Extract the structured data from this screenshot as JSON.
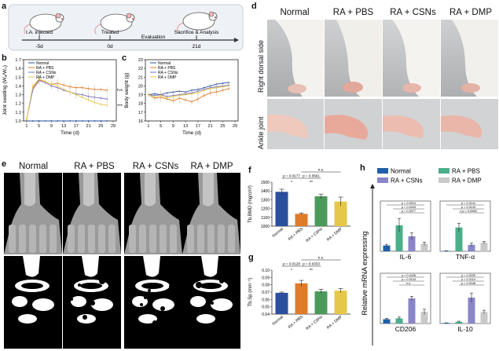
{
  "panel_labels": [
    "a",
    "b",
    "c",
    "d",
    "e",
    "f",
    "g",
    "h"
  ],
  "timeline": {
    "events": [
      {
        "label": "I.A. injected",
        "day": "-5d"
      },
      {
        "label": "Treated",
        "day": "0d"
      },
      {
        "label": "Sacrifice & Analysis",
        "day": "21d"
      }
    ],
    "arrow_label": "Evaluation"
  },
  "groups": [
    "Normal",
    "RA + PBS",
    "RA + CSNs",
    "RA + DMP"
  ],
  "colors": {
    "normal": "#2b4f9e",
    "pbs": "#e07b2a",
    "csns": "#7b6fbf",
    "dmp": "#e5c84a",
    "h_normal": "#1f5fa8",
    "h_pbs": "#4caf8a",
    "h_csns": "#8a86c8",
    "h_dmp": "#c9c9c9"
  },
  "panel_d": {
    "row_labels": [
      "Right dorsal side",
      "Ankle joint"
    ]
  },
  "chart_data": [
    {
      "id": "b",
      "type": "line",
      "xlabel": "Time (d)",
      "ylabel": "Joint swelling (Wₐ/W₀)",
      "xticks": [
        "1",
        "5",
        "9",
        "13",
        "17",
        "21",
        "25",
        "29"
      ],
      "yticks": [
        "1.0",
        "1.1",
        "1.2",
        "1.3",
        "1.4",
        "1.5",
        "1.6",
        "1.7"
      ],
      "xlim": [
        0,
        30
      ],
      "ylim": [
        1.0,
        1.7
      ],
      "annotations": [
        "n.s.",
        "***"
      ],
      "series": [
        {
          "name": "Normal",
          "x": [
            1,
            3,
            5,
            7,
            9,
            11,
            13,
            15,
            17,
            19,
            21,
            23,
            25,
            27
          ],
          "y": [
            1.0,
            1.0,
            1.0,
            1.0,
            1.0,
            1.0,
            1.0,
            1.0,
            1.0,
            1.0,
            1.0,
            1.0,
            1.0,
            1.0
          ]
        },
        {
          "name": "RA + PBS",
          "x": [
            1,
            3,
            5,
            7,
            9,
            11,
            13,
            15,
            17,
            19,
            21,
            23,
            25,
            27
          ],
          "y": [
            1.02,
            1.38,
            1.47,
            1.45,
            1.42,
            1.43,
            1.41,
            1.39,
            1.38,
            1.38,
            1.37,
            1.36,
            1.36,
            1.35
          ]
        },
        {
          "name": "RA + CSNs",
          "x": [
            1,
            3,
            5,
            7,
            9,
            11,
            13,
            15,
            17,
            19,
            21,
            23,
            25,
            27
          ],
          "y": [
            1.02,
            1.36,
            1.46,
            1.44,
            1.4,
            1.38,
            1.35,
            1.33,
            1.31,
            1.3,
            1.28,
            1.27,
            1.26,
            1.25
          ]
        },
        {
          "name": "RA + DMP",
          "x": [
            1,
            3,
            5,
            7,
            9,
            11,
            13,
            15,
            17,
            19,
            21,
            23,
            25,
            27
          ],
          "y": [
            1.02,
            1.4,
            1.48,
            1.45,
            1.42,
            1.4,
            1.36,
            1.33,
            1.3,
            1.27,
            1.24,
            1.21,
            1.19,
            1.18
          ]
        }
      ]
    },
    {
      "id": "c",
      "type": "line",
      "xlabel": "Time (d)",
      "ylabel": "Body weight (g)",
      "xticks": [
        "1",
        "5",
        "9",
        "13",
        "17",
        "21",
        "25",
        "29"
      ],
      "yticks": [
        "16",
        "17",
        "18",
        "19",
        "20",
        "21",
        "22",
        "23"
      ],
      "xlim": [
        0,
        30
      ],
      "ylim": [
        16,
        23
      ],
      "series": [
        {
          "name": "Normal",
          "x": [
            1,
            3,
            5,
            7,
            9,
            11,
            13,
            15,
            17,
            19,
            21,
            23,
            25,
            27
          ],
          "y": [
            19.0,
            19.1,
            19.0,
            19.2,
            19.3,
            19.4,
            19.3,
            19.5,
            19.6,
            19.8,
            20.0,
            20.2,
            20.3,
            20.4
          ]
        },
        {
          "name": "RA + PBS",
          "x": [
            1,
            3,
            5,
            7,
            9,
            11,
            13,
            15,
            17,
            19,
            21,
            23,
            25,
            27
          ],
          "y": [
            19.0,
            18.6,
            18.7,
            18.5,
            18.3,
            18.6,
            18.4,
            18.2,
            18.5,
            18.9,
            19.2,
            19.3,
            19.5,
            19.7
          ]
        },
        {
          "name": "RA + CSNs",
          "x": [
            1,
            3,
            5,
            7,
            9,
            11,
            13,
            15,
            17,
            19,
            21,
            23,
            25,
            27
          ],
          "y": [
            19.0,
            18.9,
            19.0,
            18.8,
            18.9,
            19.0,
            19.1,
            19.2,
            19.4,
            19.6,
            19.8,
            19.9,
            20.0,
            20.1
          ]
        },
        {
          "name": "RA + DMP",
          "x": [
            1,
            3,
            5,
            7,
            9,
            11,
            13,
            15,
            17,
            19,
            21,
            23,
            25,
            27
          ],
          "y": [
            19.0,
            18.7,
            18.9,
            18.6,
            18.8,
            18.9,
            19.0,
            19.1,
            19.2,
            19.5,
            19.7,
            19.8,
            19.9,
            20.0
          ]
        }
      ]
    },
    {
      "id": "f",
      "type": "bar",
      "ylabel": "Tb.BMD (mg/cm³)",
      "categories": [
        "Normal",
        "RA + PBS",
        "RA + CSNs",
        "RA + DMP"
      ],
      "values": [
        1390,
        1140,
        1340,
        1280
      ],
      "errors": [
        30,
        10,
        25,
        50
      ],
      "ylim": [
        1000,
        1500
      ],
      "yticks": [
        "1000",
        "1100",
        "1200",
        "1300",
        "1400",
        "1500"
      ],
      "sig": [
        {
          "text": "p = 0.0177",
          "from": 0,
          "to": 1
        },
        {
          "text": "p = 0.0561",
          "from": 1,
          "to": 2
        },
        {
          "text": "n.s.",
          "from": 1,
          "to": 3
        },
        {
          "text": "*",
          "from": 0,
          "to": 1
        },
        {
          "text": "**",
          "from": 1,
          "to": 2
        }
      ]
    },
    {
      "id": "g",
      "type": "bar",
      "ylabel": "Tb.Sp (mm⁻¹)",
      "categories": [
        "Normal",
        "RA + PBS",
        "RA + CSNs",
        "RA + DMP"
      ],
      "values": [
        0.069,
        0.082,
        0.071,
        0.072
      ],
      "errors": [
        0.001,
        0.004,
        0.003,
        0.003
      ],
      "ylim": [
        0.04,
        0.1
      ],
      "yticks": [
        "0.04",
        "0.05",
        "0.06",
        "0.07",
        "0.08",
        "0.09",
        "0.10"
      ],
      "sig": [
        {
          "text": "p = 0.0128",
          "from": 0,
          "to": 1
        },
        {
          "text": "p = 0.0333",
          "from": 1,
          "to": 2
        },
        {
          "text": "n.s.",
          "from": 1,
          "to": 3
        },
        {
          "text": "*",
          "from": 0,
          "to": 1
        },
        {
          "text": "**",
          "from": 1,
          "to": 2
        }
      ]
    },
    {
      "id": "h",
      "type": "bar",
      "ylabel": "Relative mRNA expressing",
      "legend": [
        "Normal",
        "RA + PBS",
        "RA + CSNs",
        "RA + DMP"
      ],
      "subplots": [
        {
          "label": "IL-6",
          "values": [
            1.0,
            4.5,
            2.6,
            1.3
          ],
          "errors": [
            0.2,
            1.2,
            0.6,
            0.3
          ],
          "ymax": 6,
          "sig": [
            "p = 0.0024",
            "p = 0.0443",
            "p = 0.0077"
          ]
        },
        {
          "label": "TNF-α",
          "values": [
            1.0,
            55,
            15,
            20
          ],
          "errors": [
            0.2,
            10,
            4,
            3
          ],
          "ymax": 80,
          "sig": [
            "p = 0.0141",
            "p = 0.0143",
            "n.p = 0.0065"
          ]
        },
        {
          "label": "CD206",
          "values": [
            1.0,
            1.2,
            5.8,
            2.7
          ],
          "errors": [
            0.2,
            0.3,
            0.5,
            0.6
          ],
          "ymax": 8,
          "sig": [
            "p = 0.0426",
            "p = 0.0104",
            "n.s."
          ]
        },
        {
          "label": "IL-10",
          "values": [
            1.0,
            3,
            45,
            20
          ],
          "errors": [
            0.2,
            1,
            8,
            3
          ],
          "ymax": 60,
          "sig": [
            "p = 0.0039",
            "p = 0.0114",
            "p = 0.0048"
          ]
        }
      ]
    }
  ]
}
